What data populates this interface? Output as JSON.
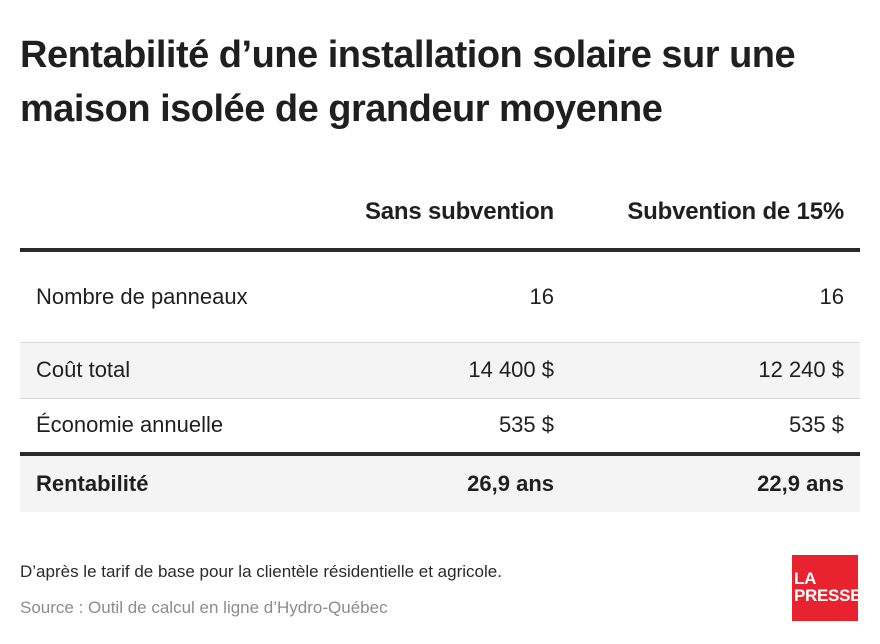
{
  "title": "Rentabilité d’une installation solaire sur une maison isolée de grandeur moyenne",
  "table": {
    "headers": [
      "",
      "Sans subvention",
      "Subvention de 15%"
    ],
    "rows": [
      {
        "label": "Nombre de panneaux",
        "sans": "16",
        "avec": "16"
      },
      {
        "label": "Coût total",
        "sans": "14 400 $",
        "avec": "12 240 $"
      },
      {
        "label": "Économie annuelle",
        "sans": "535 $",
        "avec": "535 $"
      }
    ],
    "total": {
      "label": "Rentabilité",
      "sans": "26,9 ans",
      "avec": "22,9 ans"
    }
  },
  "note": "D’après le tarif de base pour la clientèle résidentielle et agricole.",
  "source": "Source : Outil de calcul en ligne d’Hydro-Québec",
  "logo": {
    "line1": "LA",
    "line2": "PRESSE"
  },
  "colors": {
    "logo_bg": "#e8232f",
    "rule": "#2b2b2b",
    "row_alt": "#f4f4f4"
  }
}
